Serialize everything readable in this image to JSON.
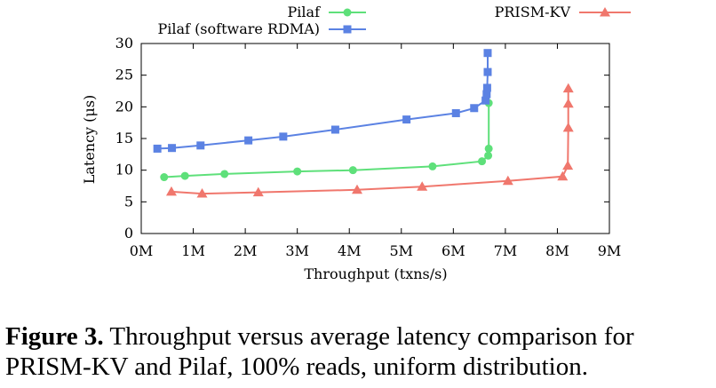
{
  "chart_data": {
    "type": "line",
    "xlabel": "Throughput (txns/s)",
    "ylabel": "Latency (μs)",
    "xlim": [
      0,
      9
    ],
    "ylim": [
      0,
      30
    ],
    "x_unit": "M txns/s",
    "xtick_labels": [
      "0M",
      "1M",
      "2M",
      "3M",
      "4M",
      "5M",
      "6M",
      "7M",
      "8M",
      "9M"
    ],
    "ytick_labels": [
      "0",
      "5",
      "10",
      "15",
      "20",
      "25",
      "30"
    ],
    "grid": false,
    "legend_position": "top",
    "series": [
      {
        "name": "Pilaf",
        "color": "#5ee07a",
        "marker": "circle",
        "x": [
          0.44,
          0.84,
          1.6,
          3.0,
          4.07,
          5.6,
          6.55,
          6.67,
          6.68,
          6.68
        ],
        "y": [
          8.9,
          9.1,
          9.4,
          9.8,
          10.0,
          10.6,
          11.4,
          12.3,
          13.4,
          20.6
        ]
      },
      {
        "name": "Pilaf (software RDMA)",
        "color": "#5b82e3",
        "marker": "square",
        "x": [
          0.31,
          0.59,
          1.14,
          2.06,
          2.73,
          3.73,
          5.1,
          6.05,
          6.4,
          6.62,
          6.64,
          6.65,
          6.66,
          6.66
        ],
        "y": [
          13.4,
          13.5,
          13.9,
          14.7,
          15.3,
          16.4,
          18.0,
          19.0,
          19.8,
          21.0,
          22.0,
          23.0,
          25.5,
          28.5
        ]
      },
      {
        "name": "PRISM-KV",
        "color": "#f0776d",
        "marker": "triangle",
        "x": [
          0.58,
          1.17,
          2.25,
          4.15,
          5.4,
          7.05,
          8.1,
          8.2,
          8.21,
          8.21,
          8.21
        ],
        "y": [
          6.6,
          6.3,
          6.5,
          6.9,
          7.4,
          8.3,
          9.0,
          10.7,
          16.7,
          20.5,
          22.9
        ]
      }
    ]
  },
  "caption": {
    "label": "Figure 3.",
    "text": " Throughput versus average latency comparison for PRISM-KV and Pilaf, 100% reads, uniform distribution."
  }
}
